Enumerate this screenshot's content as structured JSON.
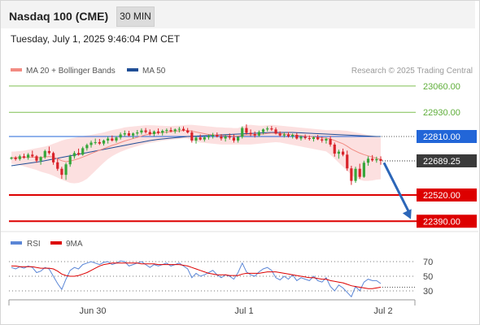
{
  "header": {
    "title": "Nasdaq 100 (CME)",
    "timeframe": "30 MIN",
    "datetime": "Tuesday, July 1, 2025 9:46:04 PM CET"
  },
  "legend": {
    "ma20_label": "MA 20 + Bollinger Bands",
    "ma50_label": "MA 50",
    "credit": "Research © 2025 Trading Central"
  },
  "levels": [
    {
      "price": 23060.0,
      "label": "23060.00",
      "kind": "resistance-light"
    },
    {
      "price": 22930.0,
      "label": "22930.00",
      "kind": "resistance-light"
    },
    {
      "price": 22810.0,
      "label": "22810.00",
      "kind": "pivot"
    },
    {
      "price": 22520.0,
      "label": "22520.00",
      "kind": "support"
    },
    {
      "price": 22390.0,
      "label": "22390.00",
      "kind": "support"
    }
  ],
  "last_price": {
    "price": 22689.25,
    "label": "22689.25"
  },
  "rsi_legend": {
    "rsi_label": "RSI",
    "ma_label": "9MA"
  },
  "rsi_axis": {
    "ticks": [
      "70",
      "50",
      "30"
    ]
  },
  "x_axis": {
    "ticks": [
      "Jun 30",
      "Jul 1",
      "Jul 2"
    ]
  },
  "colors": {
    "up": "#36a63a",
    "down": "#d9232a",
    "pivot": "#2266d8",
    "support": "#dd0000",
    "resistance": "#7fbf50",
    "ma20": "#f28b82",
    "ma50": "#1f4e96",
    "band": "#fbdada",
    "rsi": "#5b86d6",
    "rsi_ma": "#dd0000",
    "arrow": "#2c66b8",
    "last": "#3a3a3a"
  },
  "chart_data": {
    "type": "candlestick",
    "y_range": [
      22340,
      23100
    ],
    "x_ticks": [
      "Jun 30",
      "Jul 1",
      "Jul 2"
    ],
    "candles": [
      [
        22700,
        22710,
        22695,
        22705
      ],
      [
        22705,
        22712,
        22690,
        22698
      ],
      [
        22698,
        22720,
        22690,
        22712
      ],
      [
        22712,
        22725,
        22700,
        22705
      ],
      [
        22705,
        22728,
        22695,
        22720
      ],
      [
        22720,
        22740,
        22705,
        22712
      ],
      [
        22712,
        22718,
        22680,
        22690
      ],
      [
        22690,
        22712,
        22670,
        22708
      ],
      [
        22708,
        22745,
        22700,
        22738
      ],
      [
        22738,
        22760,
        22720,
        22728
      ],
      [
        22728,
        22735,
        22670,
        22682
      ],
      [
        22682,
        22700,
        22640,
        22650
      ],
      [
        22650,
        22660,
        22600,
        22620
      ],
      [
        22620,
        22680,
        22595,
        22672
      ],
      [
        22672,
        22720,
        22660,
        22712
      ],
      [
        22712,
        22738,
        22700,
        22728
      ],
      [
        22728,
        22750,
        22715,
        22720
      ],
      [
        22720,
        22760,
        22715,
        22752
      ],
      [
        22752,
        22775,
        22740,
        22768
      ],
      [
        22768,
        22790,
        22755,
        22780
      ],
      [
        22780,
        22800,
        22770,
        22782
      ],
      [
        22782,
        22798,
        22768,
        22775
      ],
      [
        22775,
        22795,
        22765,
        22790
      ],
      [
        22790,
        22810,
        22775,
        22800
      ],
      [
        22800,
        22815,
        22785,
        22790
      ],
      [
        22790,
        22812,
        22780,
        22805
      ],
      [
        22805,
        22830,
        22795,
        22820
      ],
      [
        22820,
        22840,
        22810,
        22826
      ],
      [
        22826,
        22838,
        22810,
        22815
      ],
      [
        22815,
        22830,
        22800,
        22825
      ],
      [
        22825,
        22842,
        22815,
        22830
      ],
      [
        22830,
        22850,
        22820,
        22840
      ],
      [
        22840,
        22852,
        22825,
        22832
      ],
      [
        22832,
        22845,
        22815,
        22822
      ],
      [
        22822,
        22840,
        22812,
        22835
      ],
      [
        22835,
        22850,
        22820,
        22828
      ],
      [
        22828,
        22845,
        22815,
        22838
      ],
      [
        22838,
        22850,
        22825,
        22842
      ],
      [
        22842,
        22855,
        22830,
        22836
      ],
      [
        22836,
        22850,
        22825,
        22845
      ],
      [
        22845,
        22858,
        22830,
        22848
      ],
      [
        22848,
        22860,
        22835,
        22840
      ],
      [
        22840,
        22852,
        22825,
        22830
      ],
      [
        22830,
        22840,
        22780,
        22790
      ],
      [
        22790,
        22812,
        22775,
        22805
      ],
      [
        22805,
        22820,
        22790,
        22795
      ],
      [
        22795,
        22812,
        22785,
        22806
      ],
      [
        22806,
        22820,
        22795,
        22812
      ],
      [
        22812,
        22828,
        22800,
        22818
      ],
      [
        22818,
        22830,
        22805,
        22810
      ],
      [
        22810,
        22822,
        22790,
        22800
      ],
      [
        22800,
        22818,
        22785,
        22810
      ],
      [
        22810,
        22825,
        22795,
        22805
      ],
      [
        22805,
        22820,
        22780,
        22790
      ],
      [
        22790,
        22812,
        22780,
        22808
      ],
      [
        22808,
        22860,
        22800,
        22852
      ],
      [
        22852,
        22870,
        22820,
        22828
      ],
      [
        22828,
        22845,
        22812,
        22822
      ],
      [
        22822,
        22835,
        22805,
        22815
      ],
      [
        22815,
        22840,
        22808,
        22832
      ],
      [
        22832,
        22850,
        22820,
        22845
      ],
      [
        22845,
        22860,
        22835,
        22850
      ],
      [
        22850,
        22862,
        22838,
        22845
      ],
      [
        22845,
        22855,
        22820,
        22825
      ],
      [
        22825,
        22835,
        22808,
        22815
      ],
      [
        22815,
        22830,
        22805,
        22820
      ],
      [
        22820,
        22832,
        22805,
        22812
      ],
      [
        22812,
        22825,
        22800,
        22818
      ],
      [
        22818,
        22828,
        22795,
        22800
      ],
      [
        22800,
        22815,
        22790,
        22808
      ],
      [
        22808,
        22820,
        22795,
        22802
      ],
      [
        22802,
        22815,
        22790,
        22798
      ],
      [
        22798,
        22812,
        22785,
        22806
      ],
      [
        22806,
        22818,
        22792,
        22796
      ],
      [
        22796,
        22808,
        22780,
        22790
      ],
      [
        22790,
        22805,
        22775,
        22798
      ],
      [
        22798,
        22812,
        22760,
        22770
      ],
      [
        22770,
        22780,
        22710,
        22725
      ],
      [
        22725,
        22745,
        22700,
        22735
      ],
      [
        22735,
        22750,
        22712,
        22720
      ],
      [
        22720,
        22740,
        22640,
        22652
      ],
      [
        22652,
        22665,
        22570,
        22590
      ],
      [
        22590,
        22660,
        22580,
        22650
      ],
      [
        22650,
        22675,
        22600,
        22610
      ],
      [
        22610,
        22690,
        22605,
        22680
      ],
      [
        22680,
        22712,
        22665,
        22700
      ],
      [
        22700,
        22718,
        22685,
        22692
      ],
      [
        22692,
        22710,
        22680,
        22698
      ],
      [
        22698,
        22712,
        22670,
        22689
      ]
    ],
    "ma20": [
      22705,
      22705,
      22706,
      22706,
      22707,
      22708,
      22706,
      22705,
      22708,
      22711,
      22708,
      22700,
      22690,
      22685,
      22688,
      22694,
      22700,
      22708,
      22716,
      22726,
      22734,
      22742,
      22750,
      22758,
      22766,
      22772,
      22780,
      22788,
      22794,
      22800,
      22806,
      22812,
      22818,
      22822,
      22826,
      22828,
      22830,
      22832,
      22834,
      22836,
      22838,
      22840,
      22840,
      22836,
      22832,
      22828,
      22824,
      22820,
      22818,
      22816,
      22815,
      22814,
      22813,
      22812,
      22812,
      22816,
      22818,
      22818,
      22818,
      22820,
      22822,
      22825,
      22827,
      22826,
      22824,
      22822,
      22820,
      22818,
      22816,
      22814,
      22812,
      22810,
      22808,
      22806,
      22804,
      22802,
      22798,
      22790,
      22782,
      22774,
      22762,
      22748,
      22738,
      22728,
      22720,
      22714,
      22708,
      22702,
      22696
    ],
    "ma50": [
      22665,
      22668,
      22671,
      22674,
      22677,
      22680,
      22683,
      22686,
      22690,
      22694,
      22698,
      22702,
      22706,
      22710,
      22714,
      22718,
      22722,
      22726,
      22730,
      22734,
      22738,
      22742,
      22746,
      22750,
      22754,
      22758,
      22762,
      22766,
      22770,
      22774,
      22778,
      22782,
      22786,
      22790,
      22793,
      22796,
      22798,
      22800,
      22802,
      22804,
      22806,
      22808,
      22810,
      22811,
      22812,
      22813,
      22814,
      22815,
      22816,
      22817,
      22818,
      22819,
      22820,
      22821,
      22822,
      22823,
      22824,
      22825,
      22826,
      22827,
      22828,
      22829,
      22830,
      22830,
      22830,
      22830,
      22830,
      22830,
      22829,
      22828,
      22827,
      22826,
      22825,
      22824,
      22823,
      22822,
      22821,
      22820,
      22819,
      22818,
      22817,
      22816,
      22815,
      22814,
      22813,
      22812,
      22811,
      22810,
      22810
    ],
    "band_upper": [
      22735,
      22736,
      22738,
      22740,
      22744,
      22748,
      22752,
      22756,
      22760,
      22766,
      22774,
      22782,
      22790,
      22796,
      22800,
      22804,
      22808,
      22812,
      22815,
      22818,
      22822,
      22826,
      22830,
      22836,
      22842,
      22846,
      22850,
      22855,
      22858,
      22860,
      22862,
      22864,
      22866,
      22866,
      22865,
      22864,
      22863,
      22862,
      22862,
      22863,
      22864,
      22866,
      22868,
      22868,
      22866,
      22864,
      22862,
      22860,
      22858,
      22856,
      22855,
      22854,
      22853,
      22852,
      22852,
      22860,
      22866,
      22868,
      22866,
      22864,
      22864,
      22866,
      22868,
      22866,
      22864,
      22862,
      22860,
      22858,
      22856,
      22854,
      22852,
      22850,
      22848,
      22846,
      22844,
      22842,
      22842,
      22842,
      22842,
      22840,
      22838,
      22834,
      22830,
      22826,
      22822,
      22818,
      22814,
      22808,
      22804
    ],
    "band_lower": [
      22675,
      22672,
      22668,
      22662,
      22656,
      22650,
      22644,
      22636,
      22630,
      22624,
      22616,
      22606,
      22596,
      22588,
      22580,
      22578,
      22580,
      22588,
      22600,
      22620,
      22640,
      22660,
      22680,
      22698,
      22712,
      22724,
      22734,
      22742,
      22750,
      22756,
      22762,
      22768,
      22774,
      22778,
      22782,
      22786,
      22790,
      22792,
      22794,
      22796,
      22798,
      22800,
      22800,
      22790,
      22784,
      22780,
      22778,
      22776,
      22774,
      22772,
      22770,
      22770,
      22770,
      22770,
      22770,
      22770,
      22770,
      22770,
      22772,
      22774,
      22776,
      22778,
      22780,
      22782,
      22780,
      22776,
      22772,
      22768,
      22764,
      22760,
      22756,
      22752,
      22748,
      22744,
      22740,
      22736,
      22720,
      22700,
      22680,
      22660,
      22640,
      22620,
      22605,
      22595,
      22590,
      22590,
      22592,
      22596,
      22598
    ],
    "forecast_arrow": {
      "from": 22680,
      "to": 22400
    },
    "rsi": [
      62,
      60,
      63,
      61,
      64,
      62,
      55,
      57,
      62,
      60,
      50,
      40,
      32,
      46,
      58,
      62,
      60,
      66,
      68,
      70,
      68,
      66,
      69,
      70,
      66,
      68,
      71,
      70,
      64,
      66,
      68,
      70,
      66,
      62,
      66,
      64,
      66,
      68,
      64,
      66,
      68,
      64,
      60,
      48,
      54,
      50,
      52,
      55,
      58,
      52,
      48,
      52,
      50,
      46,
      55,
      68,
      56,
      52,
      50,
      56,
      60,
      62,
      58,
      48,
      45,
      50,
      46,
      52,
      44,
      48,
      46,
      44,
      50,
      44,
      42,
      48,
      36,
      30,
      38,
      34,
      28,
      22,
      36,
      30,
      42,
      46,
      44,
      44,
      40
    ],
    "rsi_ma": [
      64,
      64,
      63,
      63,
      63,
      63,
      62,
      61,
      61,
      61,
      60,
      57,
      53,
      51,
      50,
      50,
      51,
      53,
      55,
      58,
      61,
      64,
      66,
      67,
      68,
      68,
      68,
      68,
      68,
      68,
      68,
      67,
      67,
      67,
      67,
      66,
      66,
      66,
      66,
      66,
      66,
      65,
      64,
      62,
      60,
      58,
      56,
      54,
      53,
      52,
      52,
      52,
      51,
      51,
      51,
      53,
      54,
      54,
      54,
      54,
      55,
      56,
      56,
      56,
      55,
      54,
      53,
      52,
      51,
      50,
      49,
      48,
      48,
      47,
      46,
      46,
      44,
      43,
      42,
      41,
      39,
      37,
      36,
      35,
      34,
      33,
      33,
      34,
      35
    ],
    "rsi_range": [
      0,
      100
    ]
  }
}
